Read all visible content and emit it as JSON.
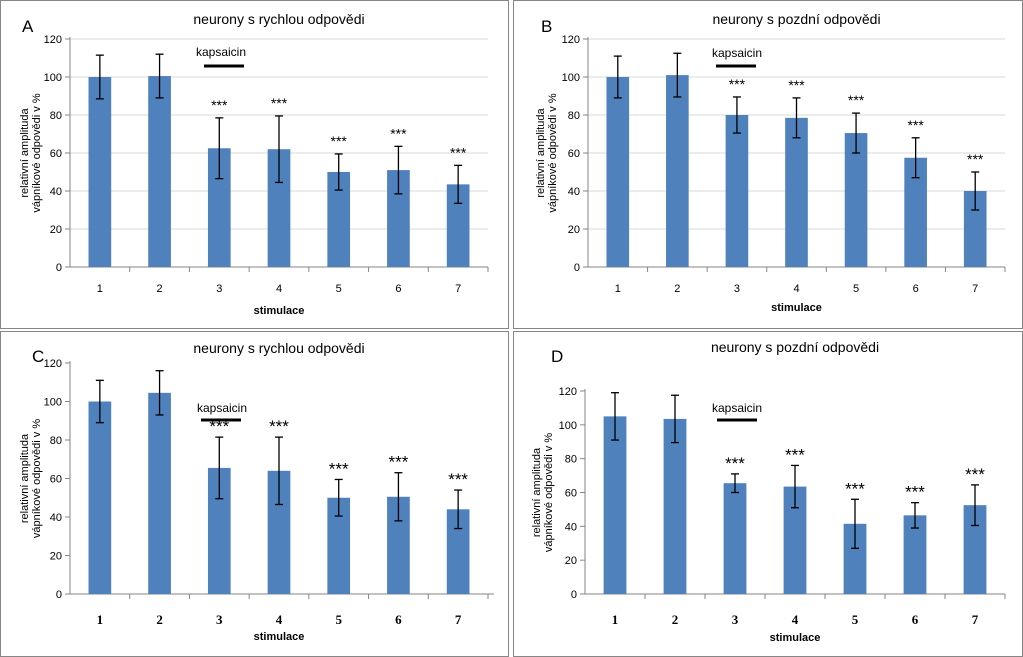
{
  "colors": {
    "bar": "#4f81bd",
    "axis": "#868686",
    "grid": "#d9d9d9",
    "text": "#000000"
  },
  "chart_data": [
    {
      "panel": "A",
      "type": "bar",
      "title": "neurony s rychlou odpovědi",
      "xlabel": "stimulace",
      "ylabel_line1": "relativní amplituda",
      "ylabel_line2": "vápníkové odpovědi  v   %",
      "categories": [
        "1",
        "2",
        "3",
        "4",
        "5",
        "6",
        "7"
      ],
      "values": [
        100,
        100.5,
        62.5,
        62,
        50,
        51,
        43.5
      ],
      "errors": [
        11.5,
        11.5,
        16,
        17.5,
        9.5,
        12.5,
        10
      ],
      "significance": [
        "",
        "",
        "***",
        "***",
        "***",
        "***",
        "***"
      ],
      "annotation": "kapsaicin",
      "yticks": [
        "0",
        "20",
        "40",
        "60",
        "80",
        "100",
        "120"
      ],
      "ylim": [
        0,
        120
      ]
    },
    {
      "panel": "B",
      "type": "bar",
      "title": "neurony s pozdní odpovědi",
      "xlabel": "stimulace",
      "ylabel_line1": "relativní amplituda",
      "ylabel_line2": "vápníkové odpovědi  v   %",
      "categories": [
        "1",
        "2",
        "3",
        "4",
        "5",
        "6",
        "7"
      ],
      "values": [
        100,
        101,
        80,
        78.5,
        70.5,
        57.5,
        40
      ],
      "errors": [
        11,
        11.5,
        9.5,
        10.5,
        10.5,
        10.5,
        10
      ],
      "significance": [
        "",
        "",
        "***",
        "***",
        "***",
        "***",
        "***"
      ],
      "annotation": "kapsaicin",
      "yticks": [
        "0",
        "20",
        "40",
        "60",
        "80",
        "100",
        "120"
      ],
      "ylim": [
        0,
        120
      ]
    },
    {
      "panel": "C",
      "type": "bar",
      "title": "neurony s rychlou odpovědi",
      "xlabel": "stimulace",
      "ylabel_line1": "relativní amplituda",
      "ylabel_line2": "vápníkové odpovědi  v   %",
      "categories": [
        "1",
        "2",
        "3",
        "4",
        "5",
        "6",
        "7"
      ],
      "values": [
        100,
        104.5,
        65.5,
        64,
        50,
        50.5,
        44
      ],
      "errors": [
        11,
        11.5,
        16,
        17.5,
        9.5,
        12.5,
        10
      ],
      "significance": [
        "",
        "",
        "***",
        "***",
        "***",
        "***",
        "***"
      ],
      "annotation": "kapsaicin",
      "yticks": [
        "0",
        "20",
        "40",
        "60",
        "80",
        "100",
        "120"
      ],
      "ylim": [
        0,
        120
      ]
    },
    {
      "panel": "D",
      "type": "bar",
      "title": "neurony s pozdní odpovědi",
      "xlabel": "stimulace",
      "ylabel_line1": "relativní amplituda",
      "ylabel_line2": "vápníkové odpovědi  v   %",
      "categories": [
        "1",
        "2",
        "3",
        "4",
        "5",
        "6",
        "7"
      ],
      "values": [
        105,
        103.5,
        65.5,
        63.5,
        41.5,
        46.5,
        52.5
      ],
      "errors": [
        14,
        14,
        5.5,
        12.5,
        14.5,
        7.5,
        12
      ],
      "significance": [
        "",
        "",
        "***",
        "***",
        "***",
        "***",
        "***"
      ],
      "annotation": "kapsaicin",
      "yticks": [
        "0",
        "20",
        "40",
        "60",
        "80",
        "100",
        "120"
      ],
      "ylim": [
        0,
        120
      ]
    }
  ]
}
